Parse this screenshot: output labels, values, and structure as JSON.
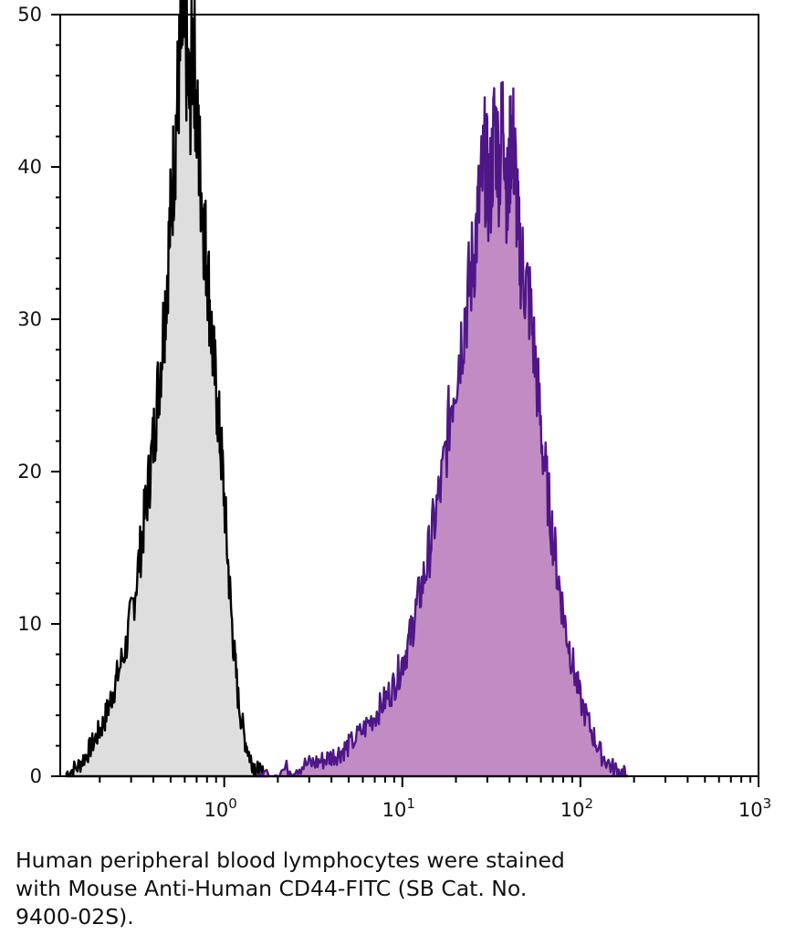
{
  "chart_data": {
    "type": "area",
    "x_scale": "log",
    "xlim": [
      0.12,
      1000
    ],
    "ylim": [
      0,
      50
    ],
    "y_ticks": [
      0,
      10,
      20,
      30,
      40,
      50
    ],
    "y_tick_labels": [
      "0",
      "10",
      "20",
      "30",
      "40",
      "50"
    ],
    "x_ticks": [
      1,
      10,
      100,
      1000
    ],
    "x_tick_labels": [
      {
        "base": "10",
        "exp": "0"
      },
      {
        "base": "10",
        "exp": "1"
      },
      {
        "base": "10",
        "exp": "2"
      },
      {
        "base": "10",
        "exp": "3"
      }
    ],
    "grid": false,
    "series": [
      {
        "fill": "#dedede",
        "stroke": "#000000",
        "x": [
          0.13,
          0.15,
          0.17,
          0.19,
          0.21,
          0.23,
          0.25,
          0.28,
          0.31,
          0.34,
          0.37,
          0.4,
          0.43,
          0.46,
          0.49,
          0.52,
          0.55,
          0.58,
          0.61,
          0.64,
          0.67,
          0.7,
          0.73,
          0.77,
          0.81,
          0.86,
          0.92,
          0.98,
          1.05,
          1.12,
          1.2,
          1.3,
          1.4,
          1.5,
          1.6,
          1.75
        ],
        "y": [
          0.2,
          0.6,
          1.5,
          2.5,
          3.5,
          5.0,
          6.5,
          8.5,
          11.5,
          15.0,
          18.5,
          22.0,
          26.0,
          30.0,
          35.0,
          40.0,
          45.0,
          49.0,
          47.5,
          44.0,
          49.0,
          43.0,
          40.0,
          36.0,
          33.0,
          28.0,
          24.0,
          20.0,
          14.0,
          9.0,
          5.0,
          2.5,
          1.2,
          0.5,
          0.2,
          0.0
        ]
      },
      {
        "fill": "#c18cc4",
        "stroke": "#4e1687",
        "x": [
          1.5,
          2.0,
          2.5,
          3.0,
          3.5,
          4.0,
          4.5,
          5.0,
          6.0,
          7.0,
          8.0,
          9.0,
          10.0,
          11.0,
          12.0,
          13.5,
          15.0,
          17.0,
          19.0,
          21.0,
          23.0,
          25.0,
          27.0,
          29.0,
          31.0,
          33.0,
          35.0,
          37.0,
          39.0,
          41.0,
          43.0,
          45.0,
          48.0,
          52.0,
          57.0,
          62.0,
          68.0,
          75.0,
          82.0,
          90.0,
          100.0,
          115.0,
          130.0,
          150.0,
          170.0,
          185.0
        ],
        "y": [
          0.0,
          0.3,
          0.6,
          0.8,
          1.0,
          1.3,
          1.6,
          2.0,
          3.0,
          4.0,
          5.0,
          6.0,
          7.5,
          9.0,
          11.0,
          13.5,
          16.5,
          20.0,
          25.0,
          28.0,
          31.0,
          34.0,
          37.5,
          40.5,
          38.0,
          43.0,
          40.0,
          44.0,
          37.0,
          43.0,
          40.0,
          35.0,
          33.0,
          31.0,
          26.0,
          21.0,
          17.0,
          13.0,
          10.0,
          7.5,
          5.0,
          3.0,
          1.5,
          0.6,
          0.2,
          0.0
        ]
      }
    ]
  },
  "caption": {
    "line1": "Human peripheral blood lymphocytes were stained",
    "line2": "with Mouse Anti-Human CD44-FITC (SB Cat. No.",
    "line3": "9400-02S)."
  }
}
